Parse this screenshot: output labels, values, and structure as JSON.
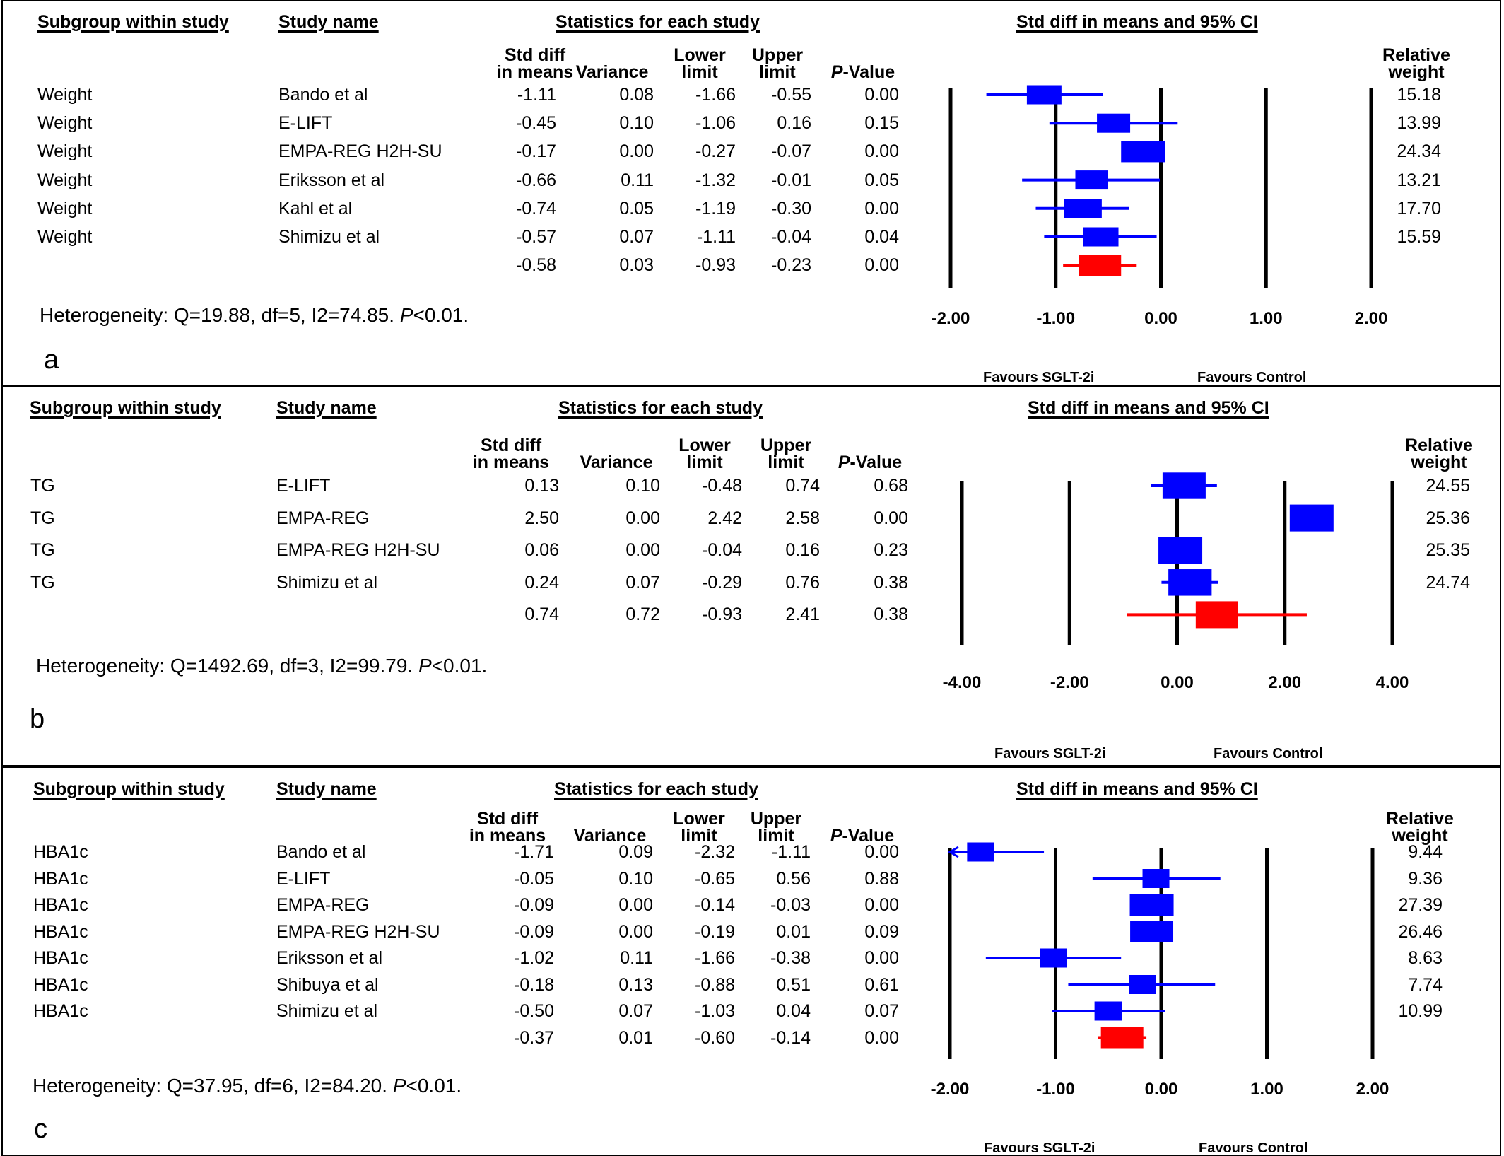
{
  "colors": {
    "study_box": "#0000ff",
    "summary_box": "#ff0000",
    "axis": "#000000"
  },
  "headers": {
    "subgroup": "Subgroup within study",
    "study": "Study name",
    "stats": "Statistics for each study",
    "ci": "Std diff in means and 95% CI",
    "col_sdm_1": "Std diff",
    "col_sdm_2": "in means",
    "col_var": "Variance",
    "col_ll_1": "Lower",
    "col_ll_2": "limit",
    "col_ul_1": "Upper",
    "col_ul_2": "limit",
    "col_p_1": "P",
    "col_p_2": "-Value",
    "col_rw_1": "Relative",
    "col_rw_2": "weight"
  },
  "favours": {
    "left": "Favours SGLT-2i",
    "right": "Favours Control"
  },
  "panels": [
    {
      "label": "a",
      "heterogeneity_1": "Heterogeneity: Q=19.88, df=5, I2=74.85. ",
      "heterogeneity_2": "P",
      "heterogeneity_3": "<0.01.",
      "axis_ticks": [
        "-2.00",
        "-1.00",
        "0.00",
        "1.00",
        "2.00"
      ],
      "axis_values": [
        -2,
        -1,
        0,
        1,
        2
      ]
    },
    {
      "label": "b",
      "heterogeneity_1": "Heterogeneity: Q=1492.69, df=3, I2=99.79. ",
      "heterogeneity_2": "P",
      "heterogeneity_3": "<0.01.",
      "axis_ticks": [
        "-4.00",
        "-2.00",
        "0.00",
        "2.00",
        "4.00"
      ],
      "axis_values": [
        -4,
        -2,
        0,
        2,
        4
      ]
    },
    {
      "label": "c",
      "heterogeneity_1": "Heterogeneity: Q=37.95, df=6, I2=84.20. ",
      "heterogeneity_2": "P",
      "heterogeneity_3": "<0.01.",
      "axis_ticks": [
        "-2.00",
        "-1.00",
        "0.00",
        "1.00",
        "2.00"
      ],
      "axis_values": [
        -2,
        -1,
        0,
        1,
        2
      ]
    }
  ],
  "chart_data": [
    {
      "type": "forest",
      "title": "Std diff in means and 95% CI",
      "xlim": [
        -2,
        2
      ],
      "xticks": [
        -2,
        -1,
        0,
        1,
        2
      ],
      "xlabel_left": "Favours SGLT-2i",
      "xlabel_right": "Favours Control",
      "rows": [
        {
          "subgroup": "Weight",
          "study": "Bando et al",
          "sdm": "-1.11",
          "variance": "0.08",
          "lower": "-1.66",
          "upper": "-0.55",
          "p": "0.00",
          "weight": "15.18"
        },
        {
          "subgroup": "Weight",
          "study": "E-LIFT",
          "sdm": "-0.45",
          "variance": "0.10",
          "lower": "-1.06",
          "upper": "0.16",
          "p": "0.15",
          "weight": "13.99"
        },
        {
          "subgroup": "Weight",
          "study": "EMPA-REG H2H-SU",
          "sdm": "-0.17",
          "variance": "0.00",
          "lower": "-0.27",
          "upper": "-0.07",
          "p": "0.00",
          "weight": "24.34"
        },
        {
          "subgroup": "Weight",
          "study": "Eriksson et al",
          "sdm": "-0.66",
          "variance": "0.11",
          "lower": "-1.32",
          "upper": "-0.01",
          "p": "0.05",
          "weight": "13.21"
        },
        {
          "subgroup": "Weight",
          "study": "Kahl et al",
          "sdm": "-0.74",
          "variance": "0.05",
          "lower": "-1.19",
          "upper": "-0.30",
          "p": "0.00",
          "weight": "17.70"
        },
        {
          "subgroup": "Weight",
          "study": "Shimizu et al",
          "sdm": "-0.57",
          "variance": "0.07",
          "lower": "-1.11",
          "upper": "-0.04",
          "p": "0.04",
          "weight": "15.59"
        }
      ],
      "summary": {
        "sdm": "-0.58",
        "variance": "0.03",
        "lower": "-0.93",
        "upper": "-0.23",
        "p": "0.00"
      }
    },
    {
      "type": "forest",
      "title": "Std diff in means and 95% CI",
      "xlim": [
        -4,
        4
      ],
      "xticks": [
        -4,
        -2,
        0,
        2,
        4
      ],
      "xlabel_left": "Favours SGLT-2i",
      "xlabel_right": "Favours Control",
      "rows": [
        {
          "subgroup": "TG",
          "study": "E-LIFT",
          "sdm": "0.13",
          "variance": "0.10",
          "lower": "-0.48",
          "upper": "0.74",
          "p": "0.68",
          "weight": "24.55"
        },
        {
          "subgroup": "TG",
          "study": "EMPA-REG",
          "sdm": "2.50",
          "variance": "0.00",
          "lower": "2.42",
          "upper": "2.58",
          "p": "0.00",
          "weight": "25.36"
        },
        {
          "subgroup": "TG",
          "study": "EMPA-REG H2H-SU",
          "sdm": "0.06",
          "variance": "0.00",
          "lower": "-0.04",
          "upper": "0.16",
          "p": "0.23",
          "weight": "25.35"
        },
        {
          "subgroup": "TG",
          "study": "Shimizu et al",
          "sdm": "0.24",
          "variance": "0.07",
          "lower": "-0.29",
          "upper": "0.76",
          "p": "0.38",
          "weight": "24.74"
        }
      ],
      "summary": {
        "sdm": "0.74",
        "variance": "0.72",
        "lower": "-0.93",
        "upper": "2.41",
        "p": "0.38"
      }
    },
    {
      "type": "forest",
      "title": "Std diff in means and 95% CI",
      "xlim": [
        -2,
        2
      ],
      "xticks": [
        -2,
        -1,
        0,
        1,
        2
      ],
      "xlabel_left": "Favours SGLT-2i",
      "xlabel_right": "Favours Control",
      "rows": [
        {
          "subgroup": "HBA1c",
          "study": "Bando et al",
          "sdm": "-1.71",
          "variance": "0.09",
          "lower": "-2.32",
          "upper": "-1.11",
          "p": "0.00",
          "weight": "9.44"
        },
        {
          "subgroup": "HBA1c",
          "study": "E-LIFT",
          "sdm": "-0.05",
          "variance": "0.10",
          "lower": "-0.65",
          "upper": "0.56",
          "p": "0.88",
          "weight": "9.36"
        },
        {
          "subgroup": "HBA1c",
          "study": "EMPA-REG",
          "sdm": "-0.09",
          "variance": "0.00",
          "lower": "-0.14",
          "upper": "-0.03",
          "p": "0.00",
          "weight": "27.39"
        },
        {
          "subgroup": "HBA1c",
          "study": "EMPA-REG H2H-SU",
          "sdm": "-0.09",
          "variance": "0.00",
          "lower": "-0.19",
          "upper": "0.01",
          "p": "0.09",
          "weight": "26.46"
        },
        {
          "subgroup": "HBA1c",
          "study": "Eriksson et al",
          "sdm": "-1.02",
          "variance": "0.11",
          "lower": "-1.66",
          "upper": "-0.38",
          "p": "0.00",
          "weight": "8.63"
        },
        {
          "subgroup": "HBA1c",
          "study": "Shibuya et al",
          "sdm": "-0.18",
          "variance": "0.13",
          "lower": "-0.88",
          "upper": "0.51",
          "p": "0.61",
          "weight": "7.74"
        },
        {
          "subgroup": "HBA1c",
          "study": "Shimizu et al",
          "sdm": "-0.50",
          "variance": "0.07",
          "lower": "-1.03",
          "upper": "0.04",
          "p": "0.07",
          "weight": "10.99"
        }
      ],
      "summary": {
        "sdm": "-0.37",
        "variance": "0.01",
        "lower": "-0.60",
        "upper": "-0.14",
        "p": "0.00"
      }
    }
  ]
}
